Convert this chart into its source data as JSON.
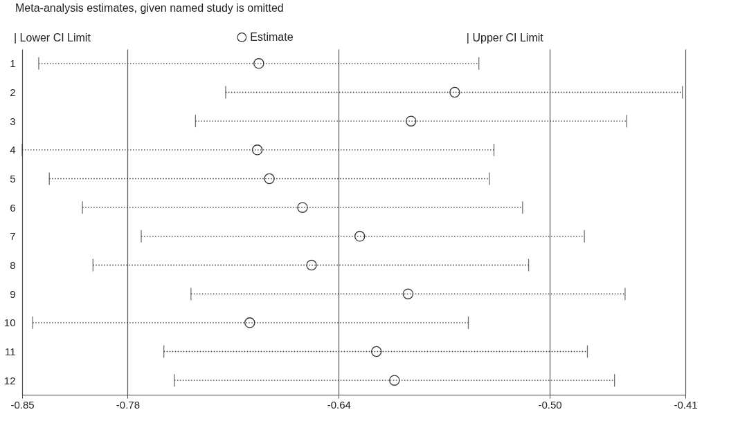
{
  "chart_data": {
    "type": "scatter",
    "orientation": "horizontal",
    "title": "Meta-analysis estimates, given named study is omitted",
    "categories": [
      "1",
      "2",
      "3",
      "4",
      "5",
      "6",
      "7",
      "8",
      "9",
      "10",
      "11",
      "12"
    ],
    "series": [
      {
        "name": "Estimate",
        "color": "#333333",
        "marker": "circle",
        "values": [
          -0.693,
          -0.563,
          -0.592,
          -0.694,
          -0.686,
          -0.664,
          -0.626,
          -0.658,
          -0.594,
          -0.699,
          -0.615,
          -0.603
        ],
        "errors": [
          [
            -0.839,
            -0.547
          ],
          [
            -0.715,
            -0.412
          ],
          [
            -0.735,
            -0.449
          ],
          [
            -0.85,
            -0.537
          ],
          [
            -0.832,
            -0.54
          ],
          [
            -0.81,
            -0.518
          ],
          [
            -0.771,
            -0.477
          ],
          [
            -0.803,
            -0.514
          ],
          [
            -0.738,
            -0.45
          ],
          [
            -0.843,
            -0.554
          ],
          [
            -0.756,
            -0.475
          ],
          [
            -0.749,
            -0.457
          ]
        ]
      }
    ],
    "annotations": [
      "| Lower CI Limit",
      "| Upper CI Limit"
    ],
    "xlim": [
      -0.85,
      -0.41
    ],
    "xticks": [
      -0.85,
      -0.78,
      -0.64,
      {
        "value": -0.5,
        "label": "-0.50"
      },
      -0.41
    ],
    "grid": "x",
    "legend": "top",
    "line_style": "dotted"
  }
}
